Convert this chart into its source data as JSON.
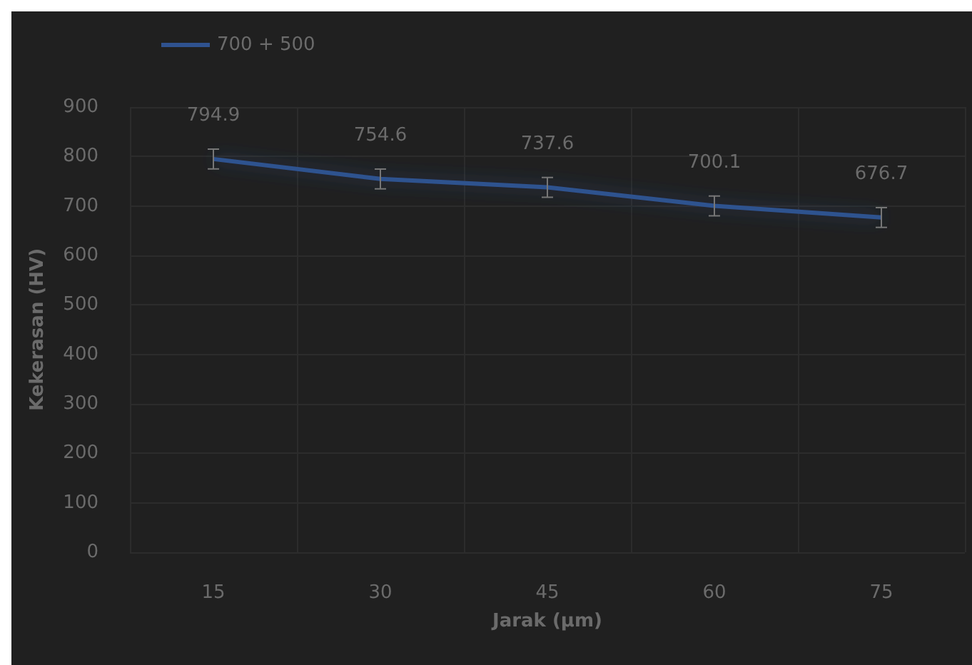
{
  "chart_data": {
    "type": "line",
    "xlabel": "Jarak (µm)",
    "ylabel": "Kekerasan (HV)",
    "categories": [
      "15",
      "30",
      "45",
      "60",
      "75"
    ],
    "series": [
      {
        "name": "700 + 500",
        "color": "#2f528f",
        "values": [
          794.9,
          754.6,
          737.6,
          700.1,
          676.7
        ],
        "errors": [
          20,
          20,
          20,
          20,
          20
        ]
      }
    ],
    "ylim": [
      0,
      900
    ],
    "yticks": [
      0,
      100,
      200,
      300,
      400,
      500,
      600,
      700,
      800,
      900
    ],
    "grid": true,
    "legend": "top left",
    "data_labels": true,
    "marker": "none"
  }
}
